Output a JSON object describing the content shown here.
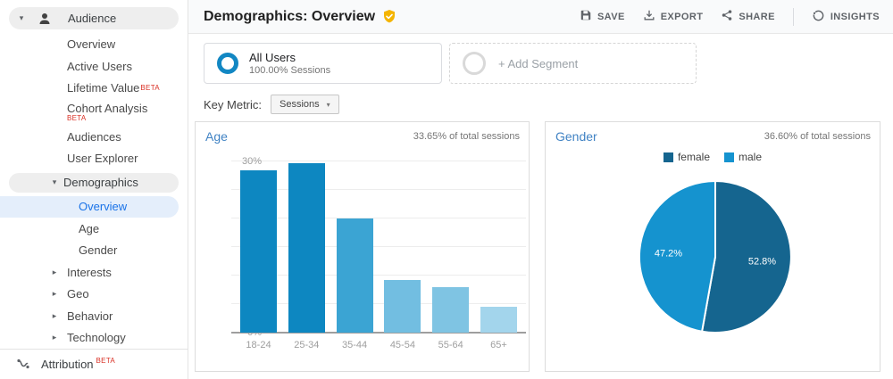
{
  "colors": {
    "link_blue": "#4183c4",
    "selected_blue": "#1a73e8",
    "beta_red": "#d93025",
    "badge_gold": "#f4b400",
    "segment_ring_blue": "#1287c3"
  },
  "sidebar": {
    "beta_label": "BETA",
    "audience": {
      "label": "Audience"
    },
    "audience_items": [
      {
        "label": "Overview"
      },
      {
        "label": "Active Users"
      },
      {
        "label": "Lifetime Value"
      },
      {
        "label": "Cohort Analysis"
      },
      {
        "label": "Audiences"
      },
      {
        "label": "User Explorer"
      }
    ],
    "demographics": {
      "label": "Demographics"
    },
    "demographics_items": [
      {
        "label": "Overview"
      },
      {
        "label": "Age"
      },
      {
        "label": "Gender"
      }
    ],
    "collapsed_items": [
      {
        "label": "Interests"
      },
      {
        "label": "Geo"
      },
      {
        "label": "Behavior"
      },
      {
        "label": "Technology"
      }
    ],
    "attribution": {
      "label": "Attribution"
    }
  },
  "header": {
    "title": "Demographics: Overview",
    "actions": {
      "save": "SAVE",
      "export": "EXPORT",
      "share": "SHARE",
      "insights": "INSIGHTS"
    }
  },
  "segments": {
    "all_users": {
      "title": "All Users",
      "subtitle": "100.00% Sessions"
    },
    "add_segment": {
      "label": "+ Add Segment"
    }
  },
  "key_metric": {
    "label": "Key Metric:",
    "value": "Sessions"
  },
  "chart_data": [
    {
      "type": "bar",
      "title": "Age",
      "subtitle": "33.65% of total sessions",
      "categories": [
        "18-24",
        "25-34",
        "35-44",
        "45-54",
        "55-64",
        "65+"
      ],
      "values": [
        28.4,
        29.7,
        20.0,
        9.2,
        7.9,
        4.6
      ],
      "unit": "%",
      "ylim": [
        0,
        30
      ],
      "ytick_step": 10,
      "grid_step": 5,
      "grid": true,
      "bar_colors": [
        "#0d87c1",
        "#0d87c1",
        "#3ba4d3",
        "#72bee1",
        "#7fc4e3",
        "#a3d5ec"
      ],
      "xlabel": "",
      "ylabel": ""
    },
    {
      "type": "pie",
      "title": "Gender",
      "subtitle": "36.60% of total sessions",
      "labels": [
        "female",
        "male"
      ],
      "values": [
        52.8,
        47.2
      ],
      "slice_labels": [
        "52.8%",
        "47.2%"
      ],
      "colors": [
        "#15658f",
        "#1593cf"
      ],
      "legend_position": "top"
    }
  ]
}
